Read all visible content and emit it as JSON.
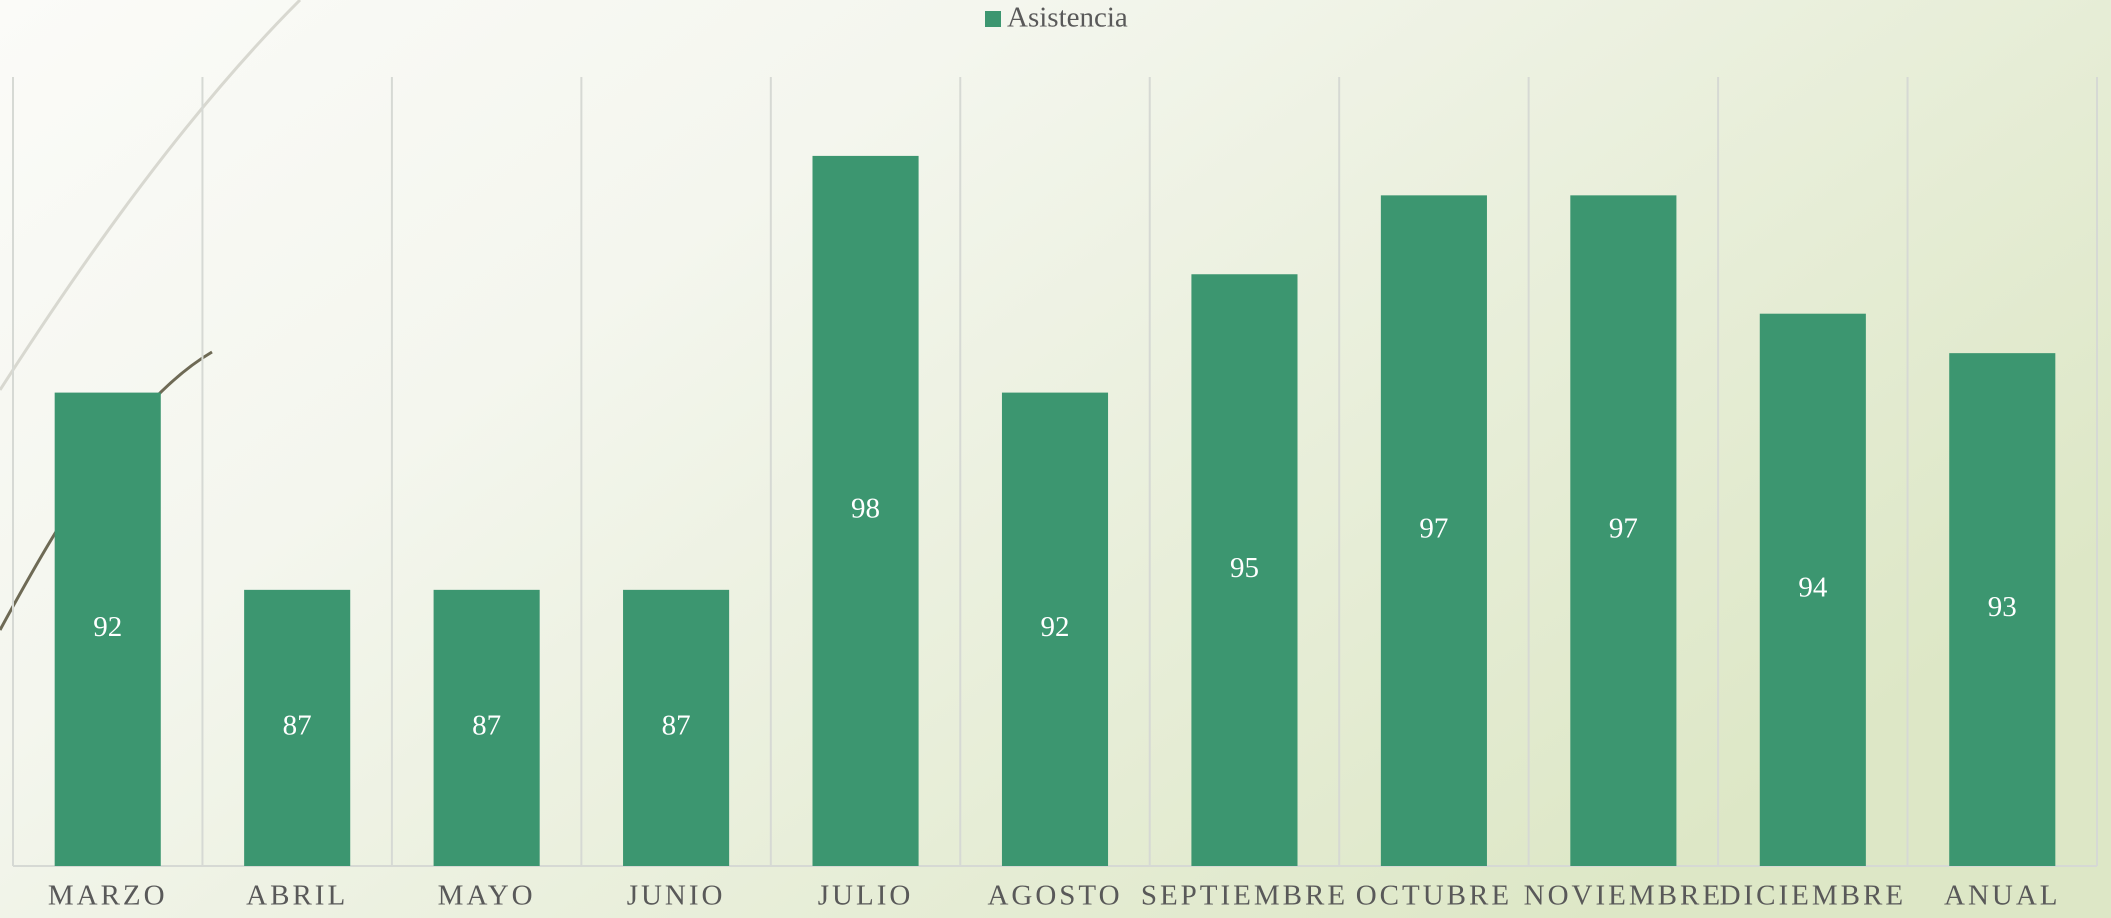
{
  "chart_data": {
    "type": "bar",
    "categories": [
      "MARZO",
      "ABRIL",
      "MAYO",
      "JUNIO",
      "JULIO",
      "AGOSTO",
      "SEPTIEMBRE",
      "OCTUBRE",
      "NOVIEMBRE",
      "DICIEMBRE",
      "ANUAL"
    ],
    "series": [
      {
        "name": "Asistencia",
        "color": "#3c9670",
        "values": [
          92,
          87,
          87,
          87,
          98,
          92,
          95,
          97,
          97,
          94,
          93
        ]
      }
    ],
    "ylim": [
      80,
      100
    ],
    "legend": "top"
  }
}
